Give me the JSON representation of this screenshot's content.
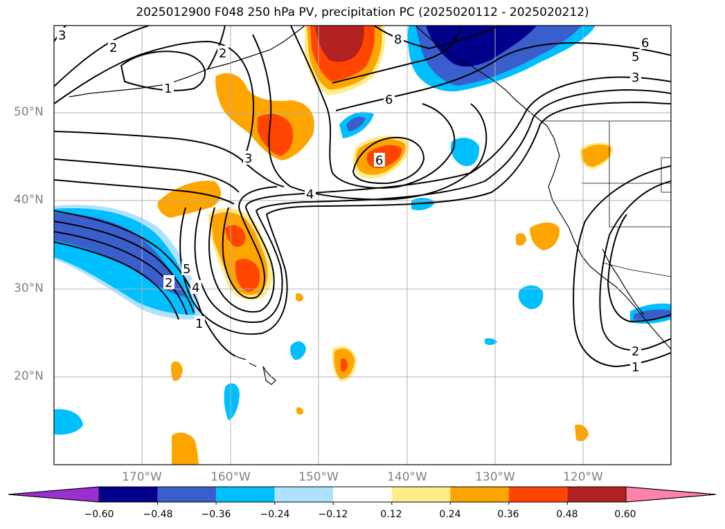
{
  "title": "2025012900 F048 250 hPa PV, precipitation PC (2025020112 - 2025020212)",
  "lat_labels": [
    "50°N",
    "40°N",
    "30°N",
    "20°N"
  ],
  "lon_labels": [
    "170°W",
    "160°W",
    "150°W",
    "140°W",
    "130°W",
    "120°W"
  ],
  "colorbar": {
    "colors": [
      "#9b30d0",
      "#00008b",
      "#3a5fcd",
      "#00bfff",
      "#b0e2ff",
      "#ffffff",
      "#ffec8b",
      "#ffa500",
      "#ff4500",
      "#b22222",
      "#ff82ab"
    ],
    "ticks": [
      "−0.60",
      "−0.48",
      "−0.36",
      "−0.24",
      "−0.12",
      "0.12",
      "0.24",
      "0.36",
      "0.48",
      "0.60"
    ]
  },
  "contour_labels": [
    "3",
    "2",
    "2",
    "1",
    "3",
    "4",
    "6",
    "6",
    "8",
    "6",
    "5",
    "3",
    "5",
    "2",
    "4",
    "1",
    "2",
    "1"
  ]
}
